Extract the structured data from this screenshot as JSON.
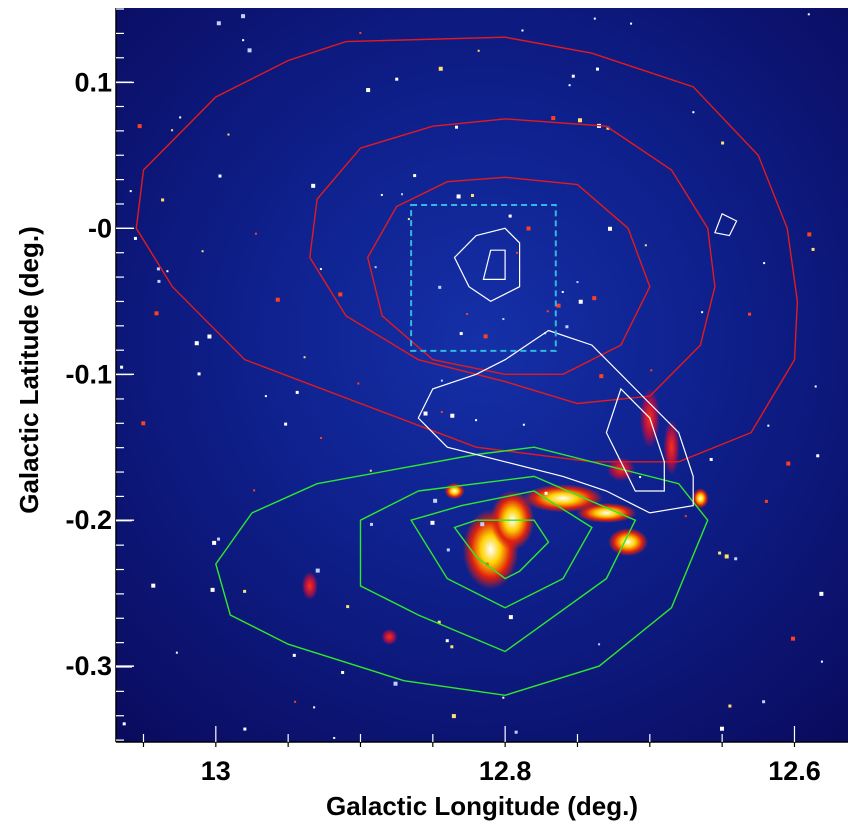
{
  "chart_data": {
    "type": "image-contour",
    "title": "",
    "xlabel": "Galactic Longitude (deg.)",
    "ylabel": "Galactic Latitude (deg.)",
    "xlim": [
      13.069,
      12.563
    ],
    "ylim": [
      -0.352,
      0.151
    ],
    "x_ticks": [
      13.0,
      12.8,
      12.6
    ],
    "x_tick_labels": [
      "13",
      "12.8",
      "12.6"
    ],
    "y_ticks": [
      0.1,
      0.0,
      -0.1,
      -0.2,
      -0.3
    ],
    "y_tick_labels": [
      "0.1",
      "-0",
      "-0.1",
      "-0.2",
      "-0.3"
    ],
    "x_minor_step": 0.05,
    "y_minor_step": 0.0167,
    "background": {
      "description_color": "#0c0c6e",
      "colormap": [
        "#0a0a5a",
        "#1a30c0",
        "#8a2060",
        "#e02010",
        "#ffd000",
        "#ffffff"
      ]
    },
    "colors": {
      "red_contours": "#e41a1c",
      "green_contours": "#2ee82e",
      "white_contours": "#ffffff",
      "box": "#33b8e0"
    },
    "red_contours": [
      {
        "name": "",
        "points": [
          [
            12.91,
            0.128
          ],
          [
            12.8,
            0.131
          ],
          [
            12.74,
            0.12
          ],
          [
            12.67,
            0.097
          ],
          [
            12.625,
            0.05
          ],
          [
            12.605,
            0.0
          ],
          [
            12.598,
            -0.05
          ],
          [
            12.6,
            -0.09
          ],
          [
            12.63,
            -0.14
          ],
          [
            12.68,
            -0.16
          ],
          [
            12.74,
            -0.16
          ],
          [
            12.82,
            -0.15
          ],
          [
            12.9,
            -0.12
          ],
          [
            12.98,
            -0.09
          ],
          [
            13.03,
            -0.04
          ],
          [
            13.055,
            0.0
          ],
          [
            13.05,
            0.04
          ],
          [
            13.0,
            0.09
          ],
          [
            12.95,
            0.115
          ],
          [
            12.91,
            0.128
          ]
        ]
      },
      {
        "name": "",
        "points": [
          [
            12.8,
            0.075
          ],
          [
            12.73,
            0.07
          ],
          [
            12.685,
            0.04
          ],
          [
            12.66,
            0.0
          ],
          [
            12.655,
            -0.04
          ],
          [
            12.665,
            -0.08
          ],
          [
            12.7,
            -0.115
          ],
          [
            12.75,
            -0.12
          ],
          [
            12.8,
            -0.105
          ],
          [
            12.86,
            -0.09
          ],
          [
            12.91,
            -0.06
          ],
          [
            12.935,
            -0.02
          ],
          [
            12.93,
            0.02
          ],
          [
            12.9,
            0.055
          ],
          [
            12.85,
            0.07
          ],
          [
            12.8,
            0.075
          ]
        ]
      },
      {
        "name": "",
        "points": [
          [
            12.8,
            0.035
          ],
          [
            12.75,
            0.03
          ],
          [
            12.715,
            0.0
          ],
          [
            12.7,
            -0.04
          ],
          [
            12.72,
            -0.08
          ],
          [
            12.76,
            -0.1
          ],
          [
            12.8,
            -0.1
          ],
          [
            12.85,
            -0.09
          ],
          [
            12.885,
            -0.06
          ],
          [
            12.895,
            -0.02
          ],
          [
            12.875,
            0.015
          ],
          [
            12.84,
            0.032
          ],
          [
            12.8,
            0.035
          ]
        ]
      }
    ],
    "green_contours": [
      {
        "name": "",
        "points": [
          [
            12.93,
            -0.175
          ],
          [
            12.82,
            -0.155
          ],
          [
            12.78,
            -0.15
          ],
          [
            12.68,
            -0.175
          ],
          [
            12.66,
            -0.2
          ],
          [
            12.685,
            -0.26
          ],
          [
            12.735,
            -0.3
          ],
          [
            12.8,
            -0.32
          ],
          [
            12.87,
            -0.31
          ],
          [
            12.95,
            -0.285
          ],
          [
            12.99,
            -0.265
          ],
          [
            13.0,
            -0.23
          ],
          [
            12.975,
            -0.195
          ],
          [
            12.93,
            -0.175
          ]
        ]
      },
      {
        "name": "",
        "points": [
          [
            12.86,
            -0.18
          ],
          [
            12.78,
            -0.17
          ],
          [
            12.71,
            -0.2
          ],
          [
            12.73,
            -0.24
          ],
          [
            12.8,
            -0.29
          ],
          [
            12.86,
            -0.265
          ],
          [
            12.9,
            -0.245
          ],
          [
            12.9,
            -0.2
          ],
          [
            12.86,
            -0.18
          ]
        ]
      },
      {
        "name": "",
        "points": [
          [
            12.83,
            -0.19
          ],
          [
            12.78,
            -0.18
          ],
          [
            12.74,
            -0.205
          ],
          [
            12.76,
            -0.24
          ],
          [
            12.8,
            -0.26
          ],
          [
            12.84,
            -0.24
          ],
          [
            12.865,
            -0.2
          ],
          [
            12.83,
            -0.19
          ]
        ]
      },
      {
        "name": "",
        "points": [
          [
            12.82,
            -0.2
          ],
          [
            12.78,
            -0.2
          ],
          [
            12.77,
            -0.215
          ],
          [
            12.79,
            -0.235
          ],
          [
            12.8,
            -0.24
          ],
          [
            12.82,
            -0.225
          ],
          [
            12.835,
            -0.205
          ],
          [
            12.82,
            -0.2
          ]
        ]
      }
    ],
    "white_contours": [
      {
        "name": "",
        "points": [
          [
            12.82,
            -0.005
          ],
          [
            12.8,
            0.0
          ],
          [
            12.79,
            -0.01
          ],
          [
            12.79,
            -0.04
          ],
          [
            12.81,
            -0.05
          ],
          [
            12.825,
            -0.04
          ],
          [
            12.835,
            -0.02
          ],
          [
            12.82,
            -0.005
          ]
        ]
      },
      {
        "name": "",
        "points": [
          [
            12.81,
            -0.015
          ],
          [
            12.8,
            -0.015
          ],
          [
            12.8,
            -0.035
          ],
          [
            12.815,
            -0.035
          ],
          [
            12.81,
            -0.015
          ]
        ]
      },
      {
        "name": "",
        "points": [
          [
            12.77,
            -0.07
          ],
          [
            12.74,
            -0.08
          ],
          [
            12.72,
            -0.1
          ],
          [
            12.7,
            -0.12
          ],
          [
            12.68,
            -0.14
          ],
          [
            12.67,
            -0.17
          ],
          [
            12.67,
            -0.19
          ],
          [
            12.7,
            -0.195
          ],
          [
            12.73,
            -0.18
          ],
          [
            12.76,
            -0.17
          ],
          [
            12.8,
            -0.16
          ],
          [
            12.84,
            -0.15
          ],
          [
            12.86,
            -0.13
          ],
          [
            12.85,
            -0.11
          ],
          [
            12.82,
            -0.1
          ],
          [
            12.8,
            -0.09
          ],
          [
            12.77,
            -0.07
          ]
        ]
      },
      {
        "name": "",
        "points": [
          [
            12.72,
            -0.11
          ],
          [
            12.7,
            -0.13
          ],
          [
            12.69,
            -0.16
          ],
          [
            12.69,
            -0.18
          ],
          [
            12.71,
            -0.18
          ],
          [
            12.72,
            -0.16
          ],
          [
            12.73,
            -0.14
          ],
          [
            12.72,
            -0.11
          ]
        ]
      },
      {
        "name": "",
        "points": [
          [
            12.65,
            0.01
          ],
          [
            12.64,
            0.005
          ],
          [
            12.645,
            -0.005
          ],
          [
            12.655,
            -0.003
          ],
          [
            12.65,
            0.01
          ]
        ]
      }
    ],
    "box": {
      "x": [
        12.865,
        12.765
      ],
      "y": [
        0.016,
        -0.084
      ]
    }
  }
}
